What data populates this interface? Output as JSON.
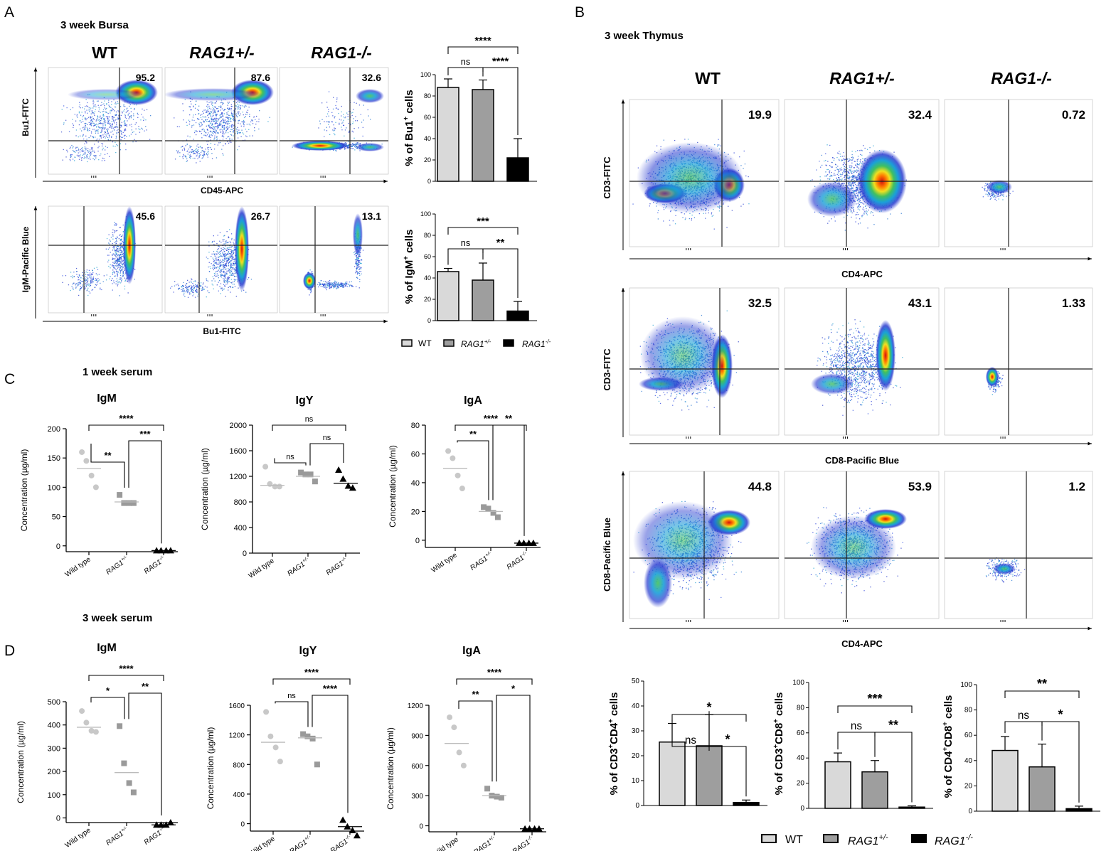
{
  "panel_letters": {
    "a": "A",
    "b": "B",
    "c": "C",
    "d": "D"
  },
  "section_titles": {
    "a": "3 week Bursa",
    "b": "3 week Thymus",
    "c": "1 week serum",
    "d": "3 week serum"
  },
  "genotype_headers": {
    "wt": "WT",
    "het": "RAG1+/-",
    "ko": "RAG1-/-"
  },
  "flow_axes": {
    "a_row1_y": "Bu1-FITC",
    "a_row1_x": "CD45-APC",
    "a_row2_y": "IgM-Pacific Blue",
    "a_row2_x": "Bu1-FITC",
    "b_row1_y": "CD3-FITC",
    "b_row1_x": "CD4-APC",
    "b_row2_y": "CD3-FITC",
    "b_row2_x": "CD8-Pacific Blue",
    "b_row3_y": "CD8-Pacific Blue",
    "b_row3_x": "CD4-APC"
  },
  "flow_percentages": {
    "a_row1": [
      "95.2",
      "87.6",
      "32.6"
    ],
    "a_row2": [
      "45.6",
      "26.7",
      "13.1"
    ],
    "b_row1": [
      "19.9",
      "32.4",
      "0.72"
    ],
    "b_row2": [
      "32.5",
      "43.1",
      "1.33"
    ],
    "b_row3": [
      "44.8",
      "53.9",
      "1.2"
    ]
  },
  "legend": {
    "wt": "WT",
    "het_base": "RAG1",
    "het_sup": "+/-",
    "ko_base": "RAG1",
    "ko_sup": "-/-"
  },
  "categories_serum": {
    "wt": "Wild type",
    "het_base": "RAG1",
    "het_sup": "+/-",
    "ko_base": "RAG1",
    "ko_sup": "-/-"
  },
  "colors": {
    "wt": "#d9d9d9",
    "het": "#9e9e9e",
    "ko": "#000000",
    "dot_wt": "#c8c8c8",
    "dot_het": "#9a9a9a",
    "dot_ko": "#000000"
  },
  "chart_data": [
    {
      "id": "a_bu1",
      "type": "bar",
      "panel": "A",
      "ylabel_base": "% of Bu1",
      "ylabel_sup": "+",
      "ylabel_tail": " cells",
      "ylim": [
        0,
        100
      ],
      "yticks": [
        "0",
        "20",
        "40",
        "60",
        "80",
        "100"
      ],
      "values": [
        88,
        86,
        22
      ],
      "errors": [
        8,
        9,
        18
      ],
      "sig": [
        {
          "label": "ns",
          "pair": [
            0,
            1
          ]
        },
        {
          "label": "****",
          "pair": [
            1,
            2
          ]
        },
        {
          "label": "****",
          "pair": [
            0,
            2
          ]
        }
      ]
    },
    {
      "id": "a_igm",
      "type": "bar",
      "panel": "A",
      "ylabel_base": "% of IgM",
      "ylabel_sup": "+",
      "ylabel_tail": " cells",
      "ylim": [
        0,
        100
      ],
      "yticks": [
        "0",
        "20",
        "40",
        "60",
        "80",
        "100"
      ],
      "values": [
        46,
        38,
        9
      ],
      "errors": [
        3,
        16,
        9
      ],
      "sig": [
        {
          "label": "ns",
          "pair": [
            0,
            1
          ]
        },
        {
          "label": "**",
          "pair": [
            1,
            2
          ]
        },
        {
          "label": "***",
          "pair": [
            0,
            2
          ]
        }
      ]
    },
    {
      "id": "b_cd3cd4",
      "type": "bar",
      "panel": "B",
      "ylabel_base": "% of CD3",
      "ylabel_sup": "+",
      "ylabel_mid": "CD4",
      "ylabel_sup2": "+",
      "ylabel_tail": " cells",
      "ylim": [
        0,
        50
      ],
      "yticks": [
        "0",
        "10",
        "20",
        "30",
        "40",
        "50"
      ],
      "values": [
        25.5,
        24,
        1.2
      ],
      "errors": [
        7.5,
        12.5,
        1
      ],
      "sig": [
        {
          "label": "ns",
          "pair": [
            0,
            1
          ]
        },
        {
          "label": "*",
          "pair": [
            1,
            2
          ]
        },
        {
          "label": "*",
          "pair": [
            0,
            2
          ]
        }
      ]
    },
    {
      "id": "b_cd3cd8",
      "type": "bar",
      "panel": "B",
      "ylabel_base": "% of CD3",
      "ylabel_sup": "+",
      "ylabel_mid": "CD8",
      "ylabel_sup2": "+",
      "ylabel_tail": " cells",
      "ylim": [
        0,
        100
      ],
      "yticks": [
        "0",
        "20",
        "40",
        "60",
        "80",
        "100"
      ],
      "values": [
        37,
        29,
        1
      ],
      "errors": [
        7,
        9,
        1
      ],
      "sig": [
        {
          "label": "ns",
          "pair": [
            0,
            1
          ]
        },
        {
          "label": "**",
          "pair": [
            1,
            2
          ]
        },
        {
          "label": "***",
          "pair": [
            0,
            2
          ]
        }
      ]
    },
    {
      "id": "b_cd4cd8",
      "type": "bar",
      "panel": "B",
      "ylabel_base": "% of CD4",
      "ylabel_sup": "+",
      "ylabel_mid": "CD8",
      "ylabel_sup2": "+",
      "ylabel_tail": " cells",
      "ylim": [
        0,
        100
      ],
      "yticks": [
        "0",
        "20",
        "40",
        "60",
        "80",
        "100"
      ],
      "values": [
        48,
        35,
        2
      ],
      "errors": [
        11,
        18,
        2
      ],
      "sig": [
        {
          "label": "ns",
          "pair": [
            0,
            1
          ]
        },
        {
          "label": "*",
          "pair": [
            1,
            2
          ]
        },
        {
          "label": "**",
          "pair": [
            0,
            2
          ]
        }
      ]
    },
    {
      "id": "c_igm",
      "type": "scatter",
      "panel": "C",
      "title": "IgM",
      "ylabel": "Concentration (µg/ml)",
      "ylim": [
        -10,
        200
      ],
      "yticks": [
        "0",
        "50",
        "100",
        "150",
        "200"
      ],
      "ytick_values": [
        0,
        50,
        100,
        150,
        200
      ],
      "groups": [
        [
          160,
          145,
          120,
          100
        ],
        [
          87,
          73,
          73,
          73
        ],
        [
          -8,
          -8,
          -8,
          -8
        ]
      ],
      "medians": [
        132,
        75,
        -8
      ],
      "sig": [
        {
          "label": "**",
          "pair": [
            0,
            1
          ]
        },
        {
          "label": "***",
          "pair": [
            1,
            2
          ]
        },
        {
          "label": "****",
          "pair": [
            0,
            2
          ]
        }
      ]
    },
    {
      "id": "c_igy",
      "type": "scatter",
      "panel": "C",
      "title": "IgY",
      "ylabel": "Concentration (µg/ml)",
      "ylim": [
        0,
        2000
      ],
      "yticks": [
        "0",
        "400",
        "800",
        "1200",
        "1600",
        "2000"
      ],
      "ytick_values": [
        0,
        400,
        800,
        1200,
        1600,
        2000
      ],
      "groups": [
        [
          1350,
          1080,
          1040,
          1040
        ],
        [
          1260,
          1230,
          1230,
          1120
        ],
        [
          1300,
          1160,
          1050,
          1020
        ]
      ],
      "medians": [
        1060,
        1200,
        1090
      ],
      "sig": [
        {
          "label": "ns",
          "pair": [
            0,
            1
          ]
        },
        {
          "label": "ns",
          "pair": [
            1,
            2
          ]
        },
        {
          "label": "ns",
          "pair": [
            0,
            2
          ]
        }
      ]
    },
    {
      "id": "c_iga",
      "type": "scatter",
      "panel": "C",
      "title": "IgA",
      "ylabel": "Concentration (µg/ml)",
      "ylim": [
        -5,
        80
      ],
      "yticks": [
        "0",
        "20",
        "40",
        "60",
        "80"
      ],
      "ytick_values": [
        0,
        20,
        40,
        60,
        80
      ],
      "groups": [
        [
          62,
          57,
          45,
          36
        ],
        [
          23,
          22,
          19,
          16
        ],
        [
          -2,
          -2,
          -2,
          -2
        ]
      ],
      "medians": [
        50,
        20,
        -2
      ],
      "sig": [
        {
          "label": "**",
          "pair": [
            0,
            1
          ]
        },
        {
          "label": "**",
          "pair": [
            1,
            2
          ]
        },
        {
          "label": "****",
          "pair": [
            0,
            2
          ]
        }
      ]
    },
    {
      "id": "d_igm",
      "type": "scatter",
      "panel": "D",
      "title": "IgM",
      "ylabel": "Concentration (µg/ml)",
      "ylim": [
        -20,
        500
      ],
      "yticks": [
        "0",
        "100",
        "200",
        "300",
        "400",
        "500"
      ],
      "ytick_values": [
        0,
        100,
        200,
        300,
        400,
        500
      ],
      "groups": [
        [
          460,
          410,
          375,
          370
        ],
        [
          395,
          235,
          150,
          110
        ],
        [
          -30,
          -30,
          -30,
          -20
        ]
      ],
      "medians": [
        390,
        195,
        -30
      ],
      "sig": [
        {
          "label": "*",
          "pair": [
            0,
            1
          ]
        },
        {
          "label": "**",
          "pair": [
            1,
            2
          ]
        },
        {
          "label": "****",
          "pair": [
            0,
            2
          ]
        }
      ]
    },
    {
      "id": "d_igy",
      "type": "scatter",
      "panel": "D",
      "title": "IgY",
      "ylabel": "Concentration (µg/ml)",
      "ylim": [
        -100,
        1600
      ],
      "yticks": [
        "0",
        "400",
        "800",
        "1200",
        "1600"
      ],
      "ytick_values": [
        0,
        400,
        800,
        1200,
        1600
      ],
      "groups": [
        [
          1510,
          1180,
          1030,
          840
        ],
        [
          1210,
          1180,
          1150,
          800
        ],
        [
          50,
          -40,
          -90,
          -160
        ]
      ],
      "medians": [
        1100,
        1160,
        -40
      ],
      "sig": [
        {
          "label": "ns",
          "pair": [
            0,
            1
          ]
        },
        {
          "label": "****",
          "pair": [
            1,
            2
          ]
        },
        {
          "label": "****",
          "pair": [
            0,
            2
          ]
        }
      ]
    },
    {
      "id": "d_iga",
      "type": "scatter",
      "panel": "D",
      "title": "IgA",
      "ylabel": "Concentration (µg/ml)",
      "ylim": [
        -60,
        1200
      ],
      "yticks": [
        "0",
        "300",
        "600",
        "900",
        "1200"
      ],
      "ytick_values": [
        0,
        300,
        600,
        900,
        1200
      ],
      "groups": [
        [
          1080,
          980,
          730,
          600
        ],
        [
          370,
          300,
          290,
          280
        ],
        [
          -30,
          -30,
          -30,
          -30
        ]
      ],
      "medians": [
        820,
        300,
        -30
      ],
      "sig": [
        {
          "label": "**",
          "pair": [
            0,
            1
          ]
        },
        {
          "label": "*",
          "pair": [
            1,
            2
          ]
        },
        {
          "label": "****",
          "pair": [
            0,
            2
          ]
        }
      ]
    }
  ]
}
